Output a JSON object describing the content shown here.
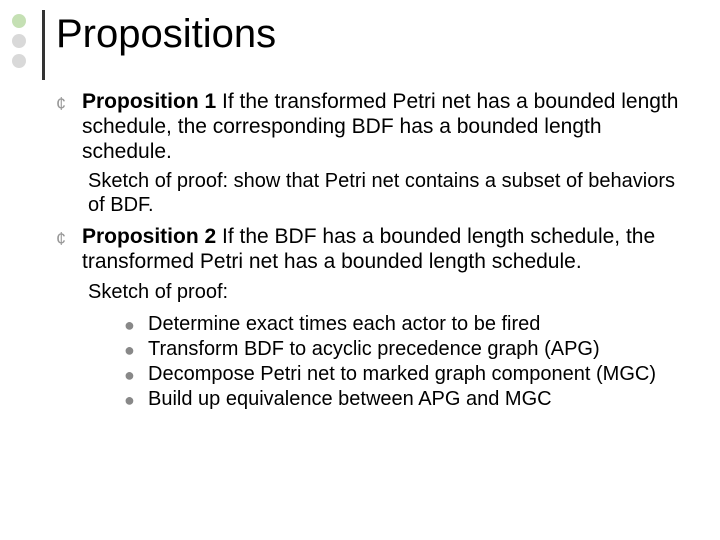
{
  "decor": {
    "dot_colors": [
      "#c5e0b4",
      "#d9d9d9",
      "#d9d9d9"
    ],
    "vline_color": "#333333"
  },
  "title": "Propositions",
  "title_fontsize": 40,
  "body_fontsize": 21,
  "sub_fontsize": 20,
  "text_color": "#000000",
  "hollow_bullet_color": "#999999",
  "disc_bullet_color": "#888888",
  "items": [
    {
      "bold": "Proposition 1",
      "rest": " If the transformed Petri net has a bounded length schedule, the corresponding BDF has a bounded length schedule.",
      "sketch_intro": "Sketch of proof: show that Petri net contains a subset of behaviors of BDF.",
      "bullets": []
    },
    {
      "bold": "Proposition 2",
      "rest": " If the BDF has a bounded length schedule, the transformed Petri net has a bounded length schedule.",
      "sketch_intro": "Sketch of proof:",
      "bullets": [
        "Determine exact times each actor to be fired",
        "Transform BDF to acyclic precedence graph (APG)",
        "Decompose Petri net to marked graph component (MGC)",
        "Build up equivalence between  APG and MGC"
      ]
    }
  ]
}
